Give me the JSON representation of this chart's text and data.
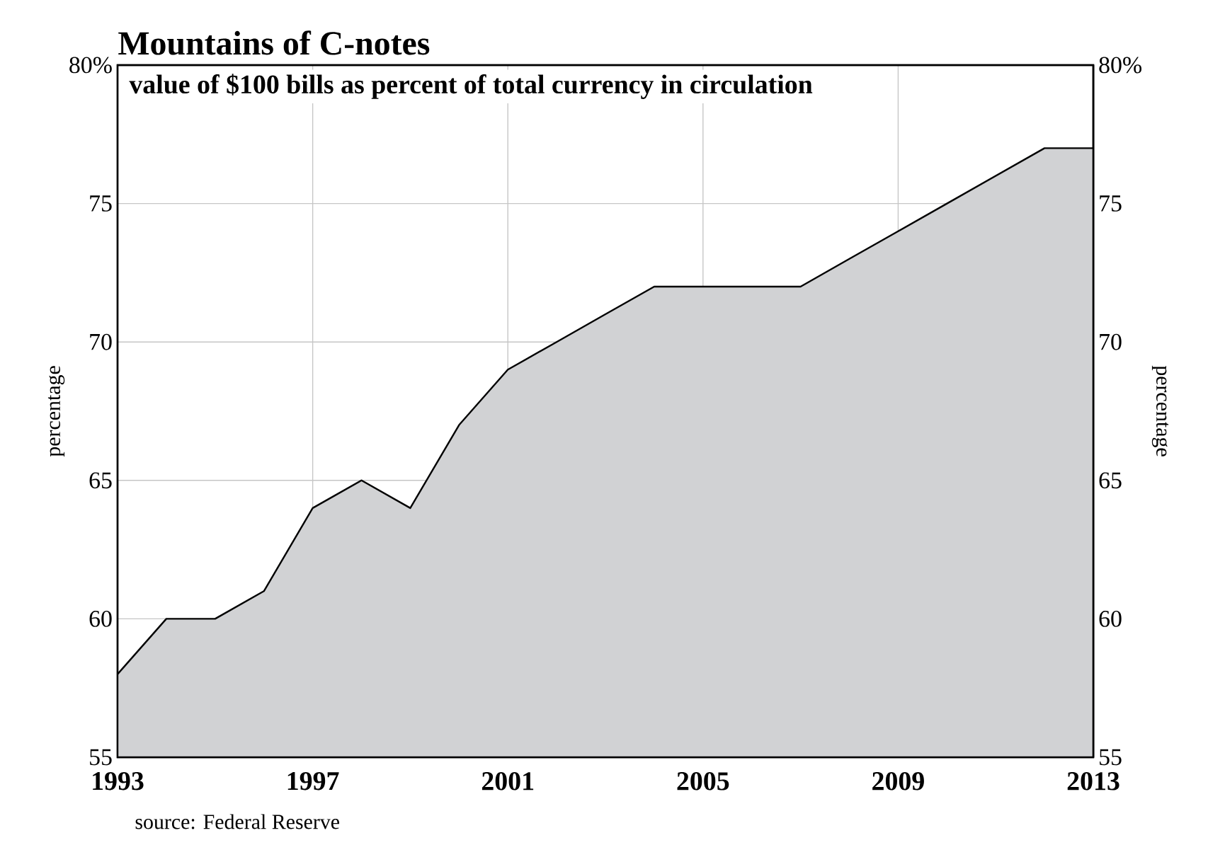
{
  "chart_data": {
    "type": "area",
    "title": "Mountains of C-notes",
    "subtitle": "value of $100 bills as percent of total currency in circulation",
    "ylabel": "percentage",
    "y2label": "percentage",
    "annotations": [
      "source: Federal Reserve"
    ],
    "x": [
      1993,
      1994,
      1995,
      1996,
      1997,
      1998,
      1999,
      2000,
      2001,
      2002,
      2003,
      2004,
      2005,
      2006,
      2007,
      2008,
      2009,
      2010,
      2011,
      2012,
      2013
    ],
    "series": [
      {
        "color": "#d1d2d4",
        "values": [
          58,
          60,
          60,
          61,
          64,
          65,
          64,
          67,
          69,
          70,
          71,
          72,
          72,
          72,
          72,
          73,
          74,
          75,
          76,
          77,
          77
        ]
      }
    ],
    "xlim": [
      1993,
      2013
    ],
    "xticks": [
      1993,
      1997,
      2001,
      2005,
      2009,
      2013
    ],
    "ylim": [
      55,
      80
    ],
    "yticks": [
      55,
      60,
      65,
      70,
      75,
      {
        "value": 80,
        "label": "80%"
      }
    ],
    "y2lim": [
      55,
      80
    ],
    "y2ticks": [
      55,
      60,
      65,
      70,
      75,
      {
        "value": 80,
        "label": "80%"
      }
    ],
    "grid": true
  }
}
